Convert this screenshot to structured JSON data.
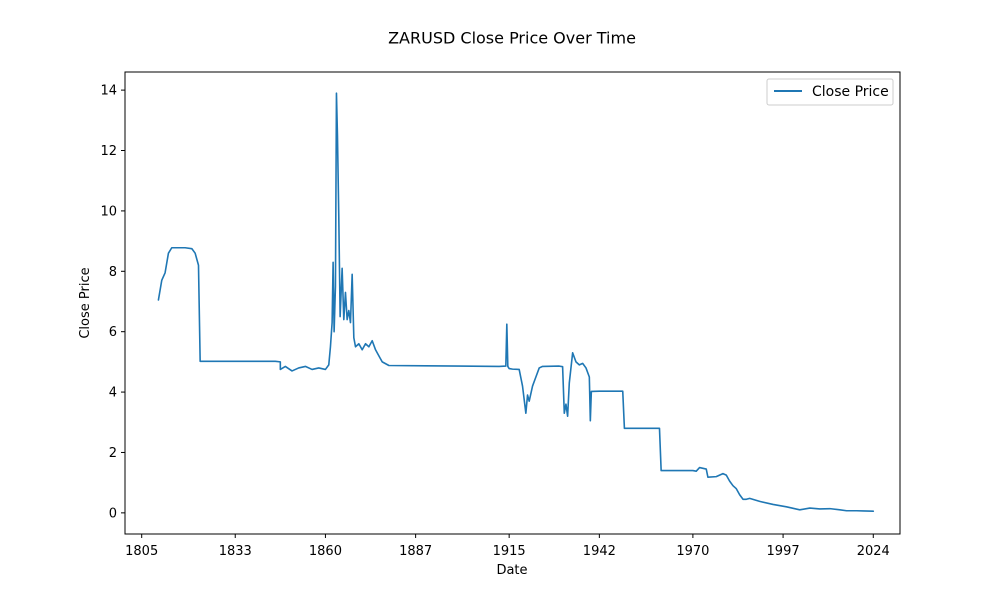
{
  "chart_data": {
    "type": "line",
    "title": "ZARUSD Close Price Over Time",
    "xlabel": "Date",
    "ylabel": "Close Price",
    "xlim": [
      1800,
      2032
    ],
    "ylim": [
      -0.7,
      14.6
    ],
    "x_ticks": [
      1805,
      1833,
      1860,
      1887,
      1915,
      1942,
      1970,
      1997,
      2024
    ],
    "y_ticks": [
      0,
      2,
      4,
      6,
      8,
      10,
      12,
      14
    ],
    "grid": false,
    "legend": "top-right",
    "colors": {
      "line": "#1f77b4",
      "axis": "#000000",
      "legend_border": "#cccccc"
    },
    "series": [
      {
        "name": "Close Price",
        "points": [
          [
            1810,
            7.05
          ],
          [
            1811,
            7.7
          ],
          [
            1812,
            7.95
          ],
          [
            1813,
            8.6
          ],
          [
            1814,
            8.78
          ],
          [
            1816,
            8.78
          ],
          [
            1818,
            8.78
          ],
          [
            1820,
            8.75
          ],
          [
            1821,
            8.6
          ],
          [
            1822,
            8.2
          ],
          [
            1822.5,
            5.02
          ],
          [
            1830,
            5.02
          ],
          [
            1838,
            5.02
          ],
          [
            1845,
            5.02
          ],
          [
            1846.5,
            5.0
          ],
          [
            1846.5,
            4.75
          ],
          [
            1848,
            4.85
          ],
          [
            1850,
            4.7
          ],
          [
            1852,
            4.8
          ],
          [
            1854,
            4.85
          ],
          [
            1856,
            4.75
          ],
          [
            1858,
            4.8
          ],
          [
            1860,
            4.75
          ],
          [
            1861,
            4.9
          ],
          [
            1861.5,
            5.5
          ],
          [
            1862,
            6.3
          ],
          [
            1862.3,
            8.3
          ],
          [
            1862.6,
            6.0
          ],
          [
            1863,
            7.5
          ],
          [
            1863.3,
            13.9
          ],
          [
            1863.6,
            12.5
          ],
          [
            1864,
            9.8
          ],
          [
            1864.4,
            6.5
          ],
          [
            1865,
            8.1
          ],
          [
            1865.5,
            6.4
          ],
          [
            1866,
            7.3
          ],
          [
            1866.5,
            6.4
          ],
          [
            1867,
            6.7
          ],
          [
            1867.5,
            6.3
          ],
          [
            1868,
            7.9
          ],
          [
            1868.5,
            5.8
          ],
          [
            1869,
            5.5
          ],
          [
            1870,
            5.6
          ],
          [
            1871,
            5.4
          ],
          [
            1872,
            5.6
          ],
          [
            1873,
            5.5
          ],
          [
            1874,
            5.7
          ],
          [
            1875,
            5.4
          ],
          [
            1876,
            5.2
          ],
          [
            1877,
            5.0
          ],
          [
            1879,
            4.88
          ],
          [
            1890,
            4.87
          ],
          [
            1900,
            4.86
          ],
          [
            1912,
            4.85
          ],
          [
            1914,
            4.86
          ],
          [
            1914.3,
            6.25
          ],
          [
            1914.6,
            4.85
          ],
          [
            1915,
            4.78
          ],
          [
            1916,
            4.76
          ],
          [
            1918,
            4.75
          ],
          [
            1919,
            4.2
          ],
          [
            1920,
            3.3
          ],
          [
            1920.5,
            3.9
          ],
          [
            1921,
            3.7
          ],
          [
            1922,
            4.2
          ],
          [
            1923,
            4.5
          ],
          [
            1924,
            4.8
          ],
          [
            1925,
            4.85
          ],
          [
            1930,
            4.86
          ],
          [
            1931,
            4.84
          ],
          [
            1931.5,
            3.3
          ],
          [
            1932,
            3.6
          ],
          [
            1932.5,
            3.2
          ],
          [
            1933,
            4.3
          ],
          [
            1934,
            5.3
          ],
          [
            1935,
            5.0
          ],
          [
            1936,
            4.9
          ],
          [
            1937,
            4.95
          ],
          [
            1938,
            4.8
          ],
          [
            1939,
            4.5
          ],
          [
            1939.3,
            3.05
          ],
          [
            1939.6,
            4.02
          ],
          [
            1942,
            4.03
          ],
          [
            1946,
            4.03
          ],
          [
            1949,
            4.03
          ],
          [
            1949.5,
            2.8
          ],
          [
            1955,
            2.8
          ],
          [
            1960,
            2.8
          ],
          [
            1960.5,
            1.4
          ],
          [
            1965,
            1.4
          ],
          [
            1970,
            1.4
          ],
          [
            1971,
            1.38
          ],
          [
            1972,
            1.5
          ],
          [
            1974,
            1.45
          ],
          [
            1974.5,
            1.18
          ],
          [
            1977,
            1.2
          ],
          [
            1979,
            1.3
          ],
          [
            1980,
            1.25
          ],
          [
            1981,
            1.05
          ],
          [
            1982,
            0.9
          ],
          [
            1983,
            0.8
          ],
          [
            1984,
            0.6
          ],
          [
            1985,
            0.45
          ],
          [
            1986,
            0.45
          ],
          [
            1987,
            0.48
          ],
          [
            1990,
            0.38
          ],
          [
            1994,
            0.28
          ],
          [
            1998,
            0.2
          ],
          [
            2000,
            0.15
          ],
          [
            2002,
            0.1
          ],
          [
            2005,
            0.16
          ],
          [
            2008,
            0.13
          ],
          [
            2011,
            0.14
          ],
          [
            2014,
            0.1
          ],
          [
            2016,
            0.07
          ],
          [
            2019,
            0.07
          ],
          [
            2021,
            0.065
          ],
          [
            2024,
            0.055
          ]
        ]
      }
    ]
  }
}
